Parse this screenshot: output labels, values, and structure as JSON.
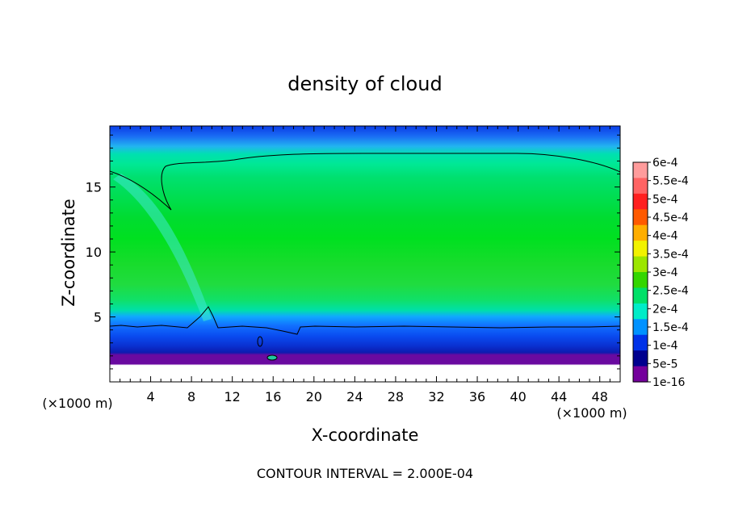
{
  "chart_data": {
    "type": "heatmap",
    "title": "density of cloud",
    "xlabel": "X-coordinate",
    "ylabel": "Z-coordinate",
    "x_unit_left": "(×1000 m)",
    "x_unit_right": "(×1000 m)",
    "footer": "CONTOUR INTERVAL = 2.000E-04",
    "xlim": [
      0,
      50
    ],
    "ylim": [
      0,
      19.7
    ],
    "xticks": [
      4,
      8,
      12,
      16,
      20,
      24,
      28,
      32,
      36,
      40,
      44,
      48
    ],
    "yticks": [
      5,
      10,
      15
    ],
    "colorbar": {
      "labels": [
        "6e-4",
        "5.5e-4",
        "5e-4",
        "4.5e-4",
        "4e-4",
        "3.5e-4",
        "3e-4",
        "2.5e-4",
        "2e-4",
        "1.5e-4",
        "1e-4",
        "5e-5",
        "1e-16"
      ],
      "colors": [
        "#ff9c9c",
        "#ff6464",
        "#ff2020",
        "#ff5a00",
        "#ffae00",
        "#f2f200",
        "#9ce600",
        "#34d600",
        "#00e068",
        "#00ecc8",
        "#0092ff",
        "#0032e8",
        "#00008e",
        "#74009c"
      ]
    },
    "contour_level": "2e-4",
    "bands": [
      {
        "z_from": 0,
        "z_to": 1.2,
        "value": "below 1e-16"
      },
      {
        "z_from": 1.2,
        "z_to": 2.0,
        "value": "1e-16"
      },
      {
        "z_from": 2.0,
        "z_to": 4.3,
        "value": "5e-5 – 1.5e-4"
      },
      {
        "z_from": 4.3,
        "z_to": 9.0,
        "value": "2.5e-4 – 3e-4"
      },
      {
        "z_from": 9.0,
        "z_to": 11.5,
        "value": "3e-4"
      },
      {
        "z_from": 11.5,
        "z_to": 17.5,
        "value": "2.5e-4 – 3e-4"
      },
      {
        "z_from": 17.5,
        "z_to": 19.7,
        "value": "5e-5 – 2e-4"
      }
    ]
  }
}
